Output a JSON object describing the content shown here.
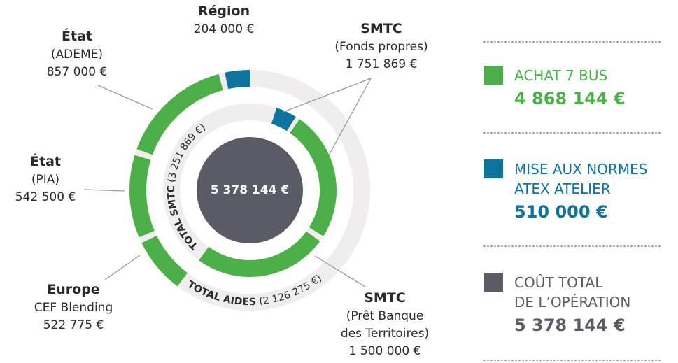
{
  "center": "5 378 144 €",
  "segments": [
    {
      "name": "Région",
      "lines": [],
      "amount": "204 000 €"
    },
    {
      "name": "État",
      "lines": [
        "(ADEME)"
      ],
      "amount": "857 000 €"
    },
    {
      "name": "État",
      "lines": [
        "(PIA)"
      ],
      "amount": "542 500 €"
    },
    {
      "name": "Europe",
      "lines": [
        "CEF Blending"
      ],
      "amount": "522 775 €"
    },
    {
      "name": "SMTC",
      "lines": [
        "(Fonds propres)"
      ],
      "amount": "1 751 869 €"
    },
    {
      "name": "SMTC",
      "lines": [
        "(Prêt Banque",
        "des Territoires)"
      ],
      "amount": "1 500 000 €"
    }
  ],
  "totals": {
    "smtc_label": "TOTAL SMTC",
    "smtc_amount": "(3 251 869 €)",
    "aides_label": "TOTAL AIDES",
    "aides_amount": "(2 126 275 €)"
  },
  "legend": [
    {
      "lines": [
        "ACHAT 7 BUS"
      ],
      "amount": "4 868 144 €"
    },
    {
      "lines": [
        "MISE AUX NORMES",
        "ATEX ATELIER"
      ],
      "amount": "510 000 €"
    },
    {
      "lines": [
        "COÛT TOTAL",
        "DE L’OPÉRATION"
      ],
      "amount": "5 378 144 €"
    }
  ]
}
